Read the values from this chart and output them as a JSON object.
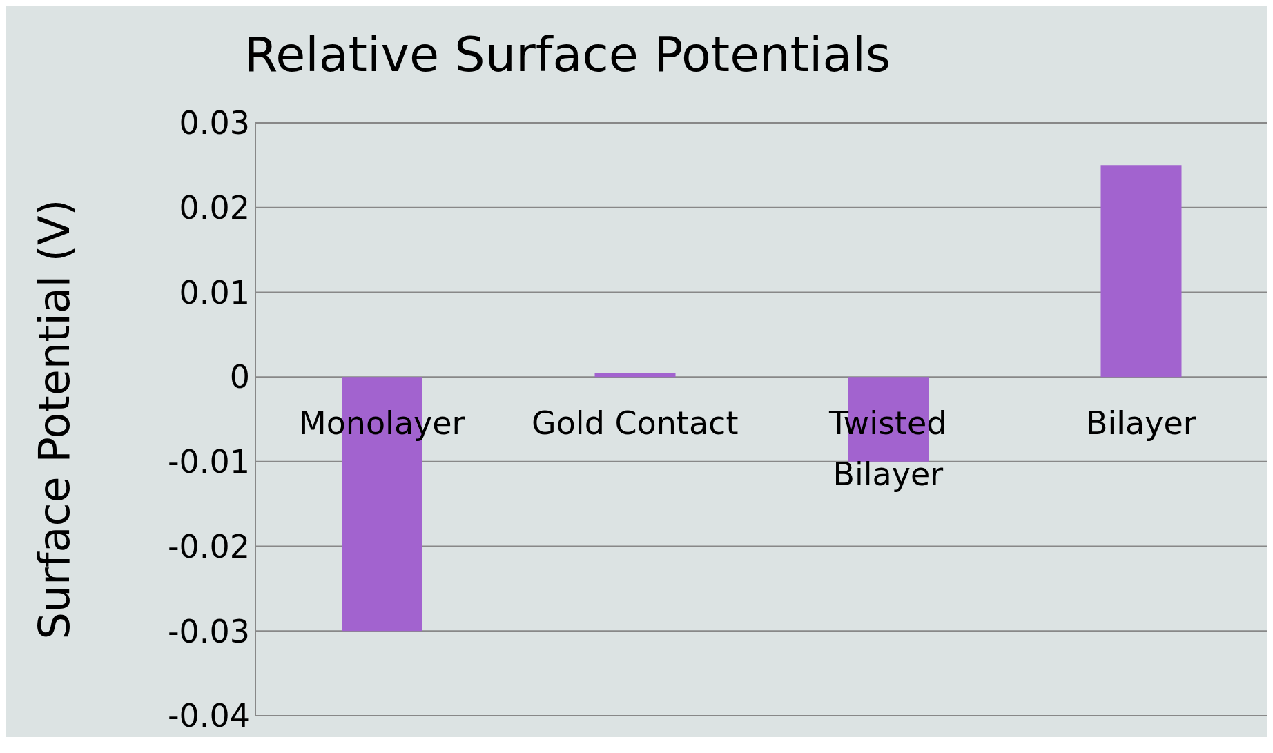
{
  "chart_data": {
    "type": "bar",
    "title": "Relative Surface Potentials",
    "ylabel": "Surface Potential (V)",
    "categories": [
      "Monolayer",
      "Gold Contact",
      "Twisted Bilayer",
      "Bilayer"
    ],
    "values": [
      -0.03,
      0.0005,
      -0.01,
      0.025
    ],
    "color": "#a263cf",
    "ylim": [
      -0.04,
      0.03
    ],
    "yticks": [
      -0.04,
      -0.03,
      -0.02,
      -0.01,
      0,
      0.01,
      0.02,
      0.03
    ],
    "grid": "y"
  }
}
